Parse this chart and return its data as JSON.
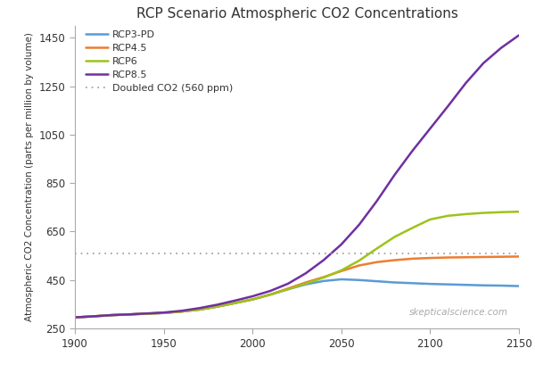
{
  "title": "RCP Scenario Atmospheric CO2 Concentrations",
  "ylabel": "Atmospheric CO2 Concentration (parts per million by volume)",
  "xlim": [
    1900,
    2150
  ],
  "ylim": [
    250,
    1500
  ],
  "yticks": [
    250,
    450,
    650,
    850,
    1050,
    1250,
    1450
  ],
  "xticks": [
    1900,
    1950,
    2000,
    2050,
    2100,
    2150
  ],
  "doubled_co2": 560,
  "watermark": "skepticalscience.com",
  "series": {
    "RCP3-PD": {
      "color": "#5B9BD5",
      "data_x": [
        1900,
        1910,
        1920,
        1930,
        1940,
        1950,
        1960,
        1970,
        1980,
        1990,
        2000,
        2010,
        2020,
        2030,
        2040,
        2050,
        2060,
        2070,
        2080,
        2090,
        2100,
        2110,
        2120,
        2130,
        2140,
        2150
      ],
      "data_y": [
        296,
        300,
        305,
        308,
        311,
        314,
        320,
        328,
        340,
        355,
        370,
        390,
        412,
        432,
        446,
        453,
        450,
        445,
        440,
        437,
        434,
        432,
        430,
        428,
        427,
        425
      ]
    },
    "RCP4.5": {
      "color": "#ED7D31",
      "data_x": [
        1900,
        1910,
        1920,
        1930,
        1940,
        1950,
        1960,
        1970,
        1980,
        1990,
        2000,
        2010,
        2020,
        2030,
        2040,
        2050,
        2060,
        2070,
        2080,
        2090,
        2100,
        2110,
        2120,
        2130,
        2140,
        2150
      ],
      "data_y": [
        296,
        300,
        305,
        308,
        311,
        314,
        320,
        328,
        340,
        355,
        370,
        390,
        415,
        440,
        462,
        487,
        510,
        524,
        532,
        538,
        541,
        543,
        544,
        545,
        546,
        547
      ]
    },
    "RCP6": {
      "color": "#9DC31B",
      "data_x": [
        1900,
        1910,
        1920,
        1930,
        1940,
        1950,
        1960,
        1970,
        1980,
        1990,
        2000,
        2010,
        2020,
        2030,
        2040,
        2050,
        2060,
        2070,
        2080,
        2090,
        2100,
        2110,
        2120,
        2130,
        2140,
        2150
      ],
      "data_y": [
        296,
        300,
        305,
        308,
        311,
        314,
        320,
        328,
        340,
        355,
        370,
        390,
        412,
        435,
        460,
        490,
        530,
        580,
        628,
        665,
        700,
        715,
        722,
        727,
        730,
        732
      ]
    },
    "RCP8.5": {
      "color": "#7030A0",
      "data_x": [
        1900,
        1910,
        1920,
        1930,
        1940,
        1950,
        1960,
        1970,
        1980,
        1990,
        2000,
        2010,
        2020,
        2030,
        2040,
        2050,
        2060,
        2070,
        2080,
        2090,
        2100,
        2110,
        2120,
        2130,
        2140,
        2150
      ],
      "data_y": [
        296,
        300,
        305,
        308,
        312,
        316,
        323,
        334,
        348,
        365,
        383,
        405,
        435,
        478,
        532,
        597,
        678,
        776,
        884,
        983,
        1075,
        1167,
        1262,
        1345,
        1408,
        1460
      ]
    }
  },
  "legend_labels": [
    "RCP3-PD",
    "RCP4.5",
    "RCP6",
    "RCP8.5",
    "Doubled CO2 (560 ppm)"
  ],
  "bg_color": "#FFFFFF",
  "line_width": 1.8,
  "axes_color": "#AAAAAA",
  "doubled_line_color": "#999999"
}
